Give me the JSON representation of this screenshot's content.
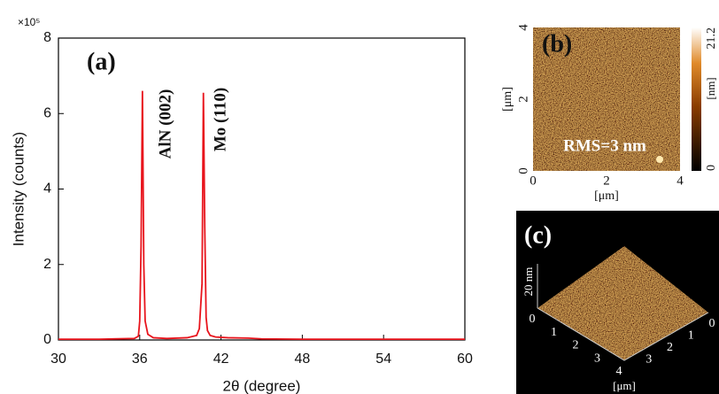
{
  "chart_data": {
    "type": "line",
    "title": "(a)",
    "x_label": "2θ (degree)",
    "y_label": "Intensity (counts)",
    "y_multiplier": "×10⁵",
    "annotations": [
      "AlN (002)",
      "Mo (110)"
    ],
    "x": [
      30,
      33,
      35.6,
      35.9,
      36.0,
      36.1,
      36.2,
      36.3,
      36.4,
      36.6,
      37,
      38,
      39.5,
      40.2,
      40.4,
      40.6,
      40.7,
      40.8,
      40.9,
      41.0,
      41.2,
      41.6,
      42.5,
      44,
      45,
      48,
      54,
      60
    ],
    "values": [
      0.02,
      0.02,
      0.04,
      0.1,
      0.5,
      2.5,
      6.6,
      2.0,
      0.5,
      0.15,
      0.06,
      0.04,
      0.06,
      0.12,
      0.3,
      1.5,
      6.55,
      3.0,
      0.6,
      0.25,
      0.12,
      0.08,
      0.06,
      0.05,
      0.03,
      0.02,
      0.02,
      0.02
    ],
    "color": "#e8141c",
    "xlim": [
      30,
      60
    ],
    "ylim": [
      0,
      8
    ],
    "xticks": [
      30,
      36,
      42,
      48,
      54,
      60
    ],
    "yticks": [
      0,
      2,
      4,
      6,
      8
    ]
  },
  "afm_b": {
    "label": "(b)",
    "rms": "RMS=3 nm",
    "axis_ticks": [
      0,
      2,
      4
    ],
    "unit": "[μm]",
    "colorbar_ticks": [
      0,
      21.2
    ],
    "colorbar_unit": "[nm]"
  },
  "afm_c": {
    "label": "(c)",
    "z_label": "20 nm",
    "axis_ticks": [
      0,
      1,
      2,
      3,
      4
    ],
    "unit": "[μm]"
  }
}
